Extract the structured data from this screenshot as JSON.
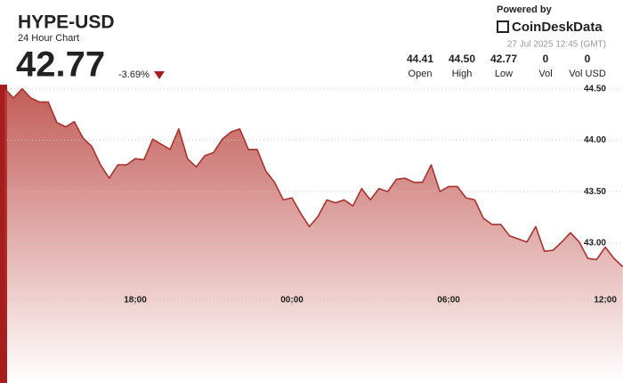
{
  "chart_data": {
    "type": "line",
    "title": "HYPE-USD",
    "subtitle": "24 Hour Chart",
    "price": "42.77",
    "change": "-3.69%",
    "powered_by": "Powered by",
    "brand": "CoinDeskData",
    "timestamp": "27 Jul 2025 12:45 (GMT)",
    "stats": [
      {
        "value": "44.41",
        "label": "Open"
      },
      {
        "value": "44.50",
        "label": "High"
      },
      {
        "value": "42.77",
        "label": "Low"
      },
      {
        "value": "0",
        "label": "Vol"
      },
      {
        "value": "0",
        "label": "Vol USD"
      }
    ],
    "color": "#a8322d",
    "categories": [
      null,
      null,
      null,
      null,
      null,
      null,
      null,
      null,
      null,
      null,
      null,
      null,
      null,
      null,
      null,
      "18:00",
      null,
      null,
      null,
      null,
      null,
      null,
      null,
      null,
      null,
      null,
      null,
      null,
      null,
      null,
      null,
      null,
      null,
      "00:00",
      null,
      null,
      null,
      null,
      null,
      null,
      null,
      null,
      null,
      null,
      null,
      null,
      null,
      null,
      null,
      null,
      null,
      "06:00",
      null,
      null,
      null,
      null,
      null,
      null,
      null,
      null,
      null,
      null,
      null,
      null,
      null,
      null,
      null,
      null,
      null,
      "12:00",
      null,
      null
    ],
    "values": [
      44.5,
      44.41,
      44.5,
      44.41,
      44.37,
      44.37,
      44.17,
      44.13,
      44.18,
      44.02,
      43.94,
      43.76,
      43.63,
      43.76,
      43.76,
      43.82,
      43.81,
      44.01,
      43.96,
      43.91,
      44.11,
      43.82,
      43.74,
      43.85,
      43.88,
      44.01,
      44.08,
      44.11,
      43.91,
      43.91,
      43.7,
      43.59,
      43.42,
      43.44,
      43.29,
      43.16,
      43.26,
      43.42,
      43.39,
      43.42,
      43.36,
      43.53,
      43.42,
      43.53,
      43.5,
      43.62,
      43.63,
      43.59,
      43.59,
      43.76,
      43.5,
      43.55,
      43.55,
      43.44,
      43.42,
      43.24,
      43.18,
      43.18,
      43.07,
      43.04,
      43.01,
      43.16,
      42.92,
      42.93,
      43.01,
      43.1,
      43.01,
      42.85,
      42.84,
      42.96,
      42.85,
      42.77
    ],
    "ylim": [
      41.64,
      44.54
    ],
    "yticks": [
      {
        "value": 44.5,
        "label": "44.50"
      },
      {
        "value": 44.0,
        "label": "44.00"
      },
      {
        "value": 43.5,
        "label": "43.50"
      },
      {
        "value": 43.0,
        "label": "43.00"
      }
    ],
    "grid": true
  }
}
